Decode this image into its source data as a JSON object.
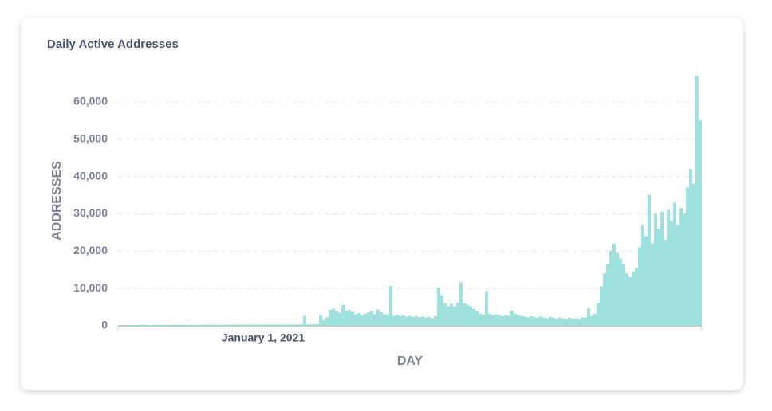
{
  "chart_data": {
    "type": "bar",
    "title": "Daily Active Addresses",
    "y_label": "ADDRESSES",
    "x_label": "DAY",
    "categories": [
      null,
      null,
      null,
      null,
      null,
      null,
      null,
      null,
      null,
      null,
      null,
      null,
      null,
      null,
      null,
      null,
      null,
      null,
      null,
      null,
      null,
      null,
      null,
      null,
      null,
      null,
      null,
      null,
      null,
      null,
      null,
      null,
      null,
      null,
      null,
      null,
      null,
      null,
      null,
      null,
      null,
      null,
      null,
      null,
      null,
      "January 1, 2021",
      null,
      null,
      null,
      null,
      null,
      null,
      null,
      null,
      null,
      null,
      null,
      null,
      null,
      null,
      null,
      null,
      null,
      null,
      null,
      null,
      null,
      null,
      null,
      null,
      null,
      null,
      null,
      null,
      null,
      null,
      null,
      null,
      null,
      null,
      null,
      null,
      null,
      null,
      null,
      null,
      null,
      null,
      null,
      null,
      null,
      null,
      null,
      null,
      null,
      null,
      null,
      null,
      null,
      null,
      null,
      null,
      null,
      null,
      null,
      null,
      null,
      null,
      null,
      null,
      null,
      null,
      null,
      null,
      null,
      null,
      null,
      null,
      null,
      null,
      null,
      null,
      null,
      null,
      null,
      null,
      null,
      null,
      null,
      null,
      null,
      null,
      null,
      null,
      null,
      null,
      null,
      null,
      null,
      null,
      null,
      null,
      null,
      null,
      null,
      null,
      null,
      null,
      null,
      null,
      null,
      null,
      null,
      null,
      null,
      null,
      null,
      null,
      null,
      null,
      null,
      null,
      null,
      null,
      null,
      null,
      null,
      null,
      null,
      null,
      null,
      null,
      null,
      null,
      null,
      null,
      null,
      null,
      null,
      null,
      null,
      null,
      null
    ],
    "values": [
      150,
      160,
      170,
      180,
      170,
      160,
      180,
      190,
      200,
      180,
      190,
      200,
      210,
      200,
      190,
      200,
      210,
      220,
      200,
      210,
      220,
      210,
      200,
      220,
      230,
      220,
      210,
      230,
      240,
      220,
      230,
      240,
      250,
      230,
      240,
      250,
      260,
      240,
      250,
      260,
      250,
      260,
      270,
      250,
      260,
      270,
      280,
      260,
      270,
      280,
      290,
      270,
      280,
      300,
      290,
      280,
      300,
      310,
      2600,
      300,
      320,
      310,
      330,
      2800,
      1500,
      2200,
      4200,
      4500,
      3800,
      3500,
      5500,
      4000,
      4200,
      3700,
      3000,
      3400,
      2800,
      3200,
      3500,
      3900,
      3000,
      4300,
      3600,
      3100,
      2900,
      10600,
      2600,
      2900,
      2500,
      2700,
      2400,
      2600,
      2300,
      2500,
      2200,
      2400,
      2100,
      2300,
      2000,
      2500,
      10200,
      8200,
      6000,
      5200,
      5800,
      5000,
      6200,
      11600,
      6000,
      5600,
      5200,
      4500,
      3800,
      3200,
      2900,
      9200,
      3200,
      2800,
      3000,
      2700,
      2500,
      2800,
      2600,
      4000,
      3200,
      2900,
      2600,
      2400,
      2200,
      2500,
      2300,
      2100,
      2400,
      2200,
      2000,
      2300,
      2100,
      1900,
      2200,
      2000,
      1800,
      2100,
      1900,
      2000,
      1800,
      2200,
      2100,
      4600,
      2500,
      3200,
      6000,
      10500,
      14000,
      16500,
      20000,
      22000,
      19500,
      18000,
      16500,
      14000,
      13000,
      14500,
      15500,
      21000,
      27000,
      24000,
      35000,
      22000,
      30000,
      26000,
      30500,
      23000,
      31000,
      28000,
      33000,
      27000,
      31500,
      30000,
      37000,
      42000,
      38000,
      67000,
      55000
    ],
    "color": "#9ee2dd",
    "ylim": [
      0,
      68000
    ],
    "yticks": [
      0,
      {
        "value": 10000,
        "label": "10,000"
      },
      {
        "value": 20000,
        "label": "20,000"
      },
      {
        "value": 30000,
        "label": "30,000"
      },
      {
        "value": 40000,
        "label": "40,000"
      },
      {
        "value": 50000,
        "label": "50,000"
      },
      {
        "value": 60000,
        "label": "60,000"
      }
    ],
    "grid": true
  }
}
